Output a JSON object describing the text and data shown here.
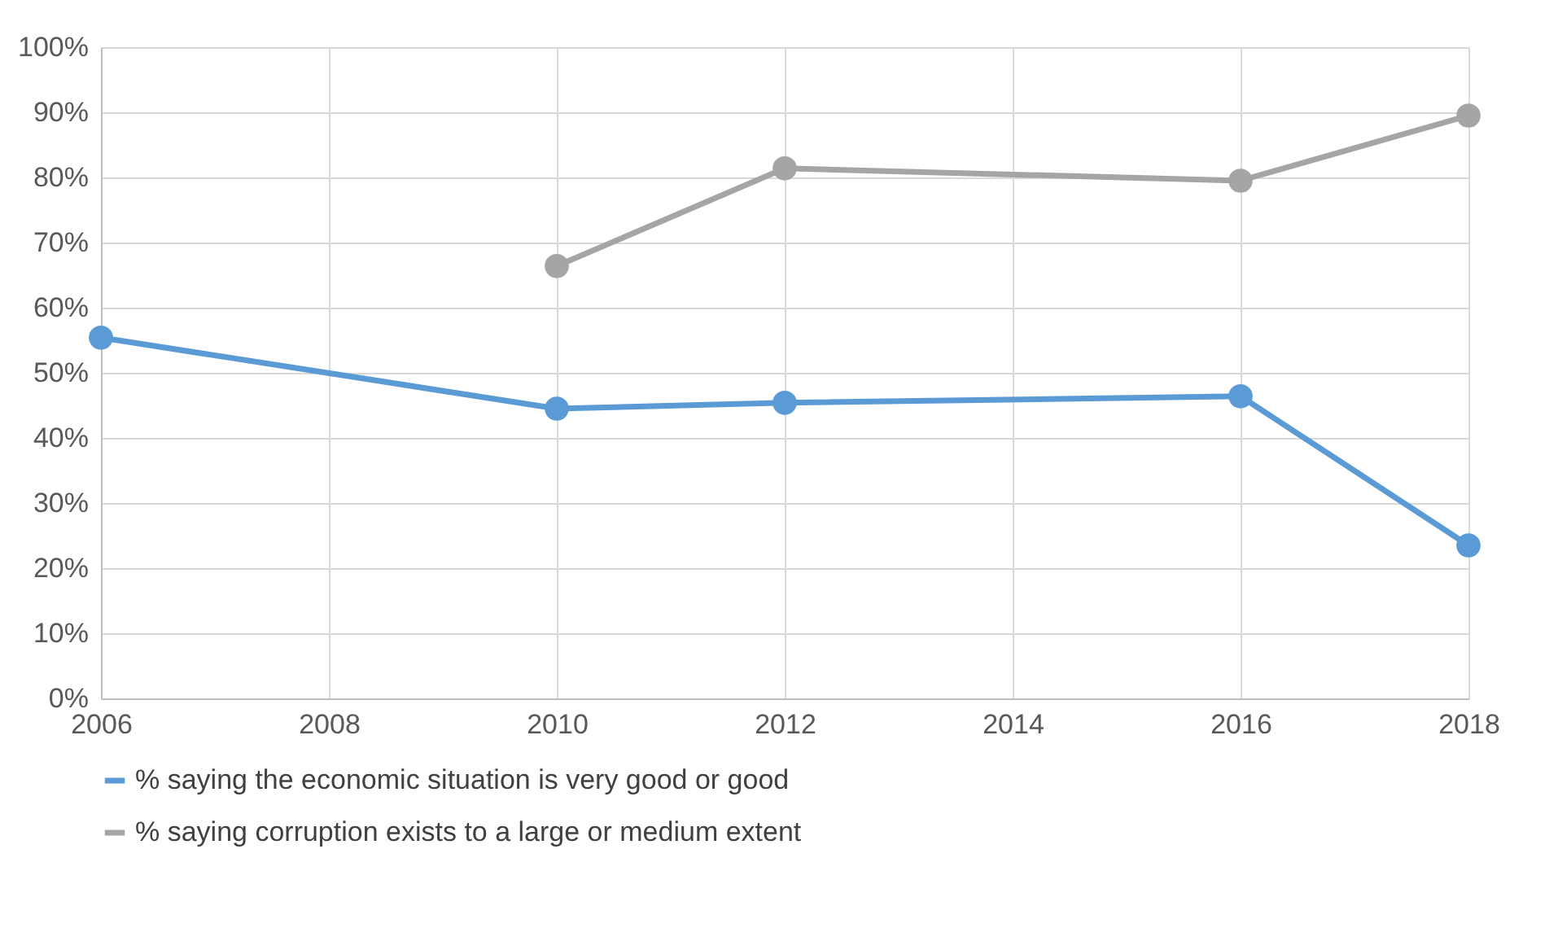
{
  "chart_data": {
    "type": "line",
    "x": [
      2006,
      2010,
      2012,
      2016,
      2018
    ],
    "series": [
      {
        "name": "% saying the economic situation is very good or good",
        "color": "#5b9bd5",
        "values": [
          55.4,
          44.5,
          45.4,
          46.4,
          23.5
        ]
      },
      {
        "name": "% saying corruption exists to a large or medium extent",
        "color": "#a5a5a5",
        "values": [
          null,
          66.4,
          81.4,
          79.5,
          89.5
        ]
      }
    ],
    "xlim": [
      2006,
      2018
    ],
    "xticks": [
      2006,
      2008,
      2010,
      2012,
      2014,
      2016,
      2018
    ],
    "ylim": [
      0,
      100
    ],
    "yticks": [
      {
        "value": 0,
        "label": "0%"
      },
      {
        "value": 10,
        "label": "10%"
      },
      {
        "value": 20,
        "label": "20%"
      },
      {
        "value": 30,
        "label": "30%"
      },
      {
        "value": 40,
        "label": "40%"
      },
      {
        "value": 50,
        "label": "50%"
      },
      {
        "value": 60,
        "label": "60%"
      },
      {
        "value": 70,
        "label": "70%"
      },
      {
        "value": 80,
        "label": "80%"
      },
      {
        "value": 90,
        "label": "90%"
      },
      {
        "value": 100,
        "label": "100%"
      }
    ],
    "grid": true,
    "legend": "bottom",
    "marker": "circle",
    "line_style": "solid"
  }
}
